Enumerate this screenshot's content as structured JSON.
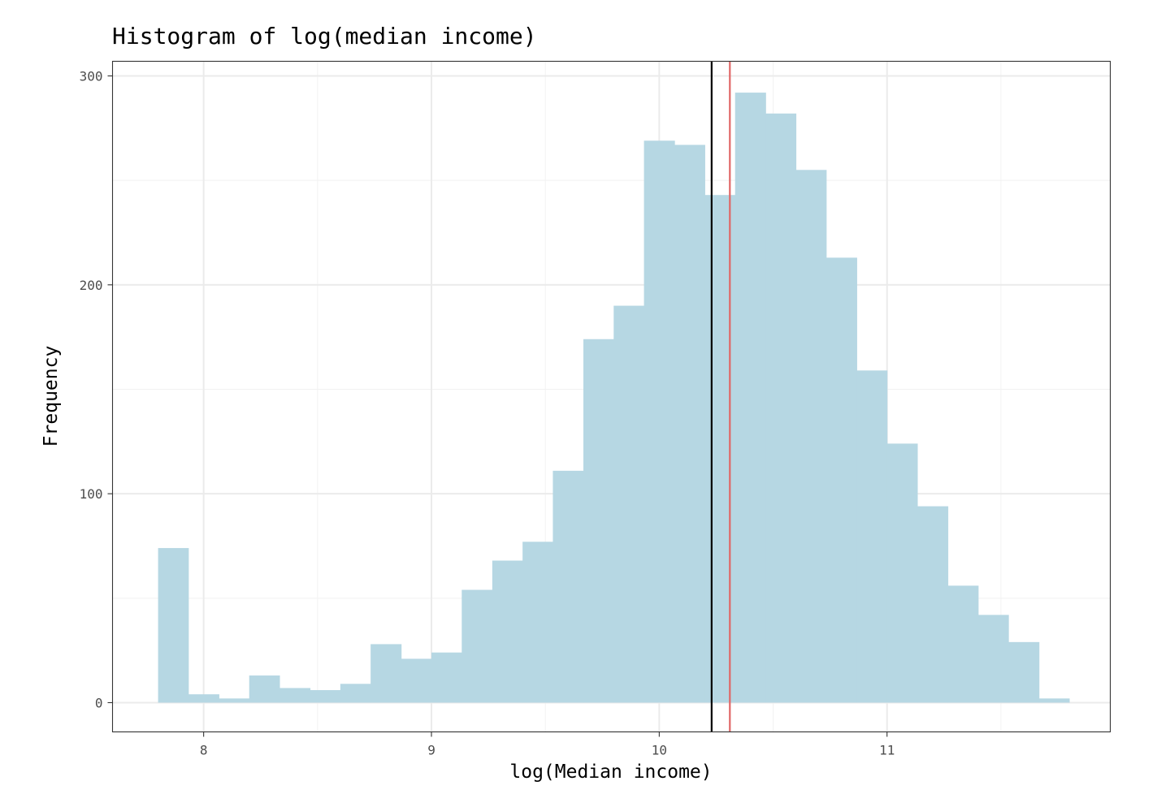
{
  "chart_data": {
    "type": "bar",
    "title": "Histogram of log(median income)",
    "xlabel": "log(Median income)",
    "ylabel": "Frequency",
    "xlim": [
      7.6,
      11.98
    ],
    "ylim": [
      -14,
      307
    ],
    "x_ticks": [
      8,
      9,
      10,
      11
    ],
    "x_minor_ticks": [
      8.5,
      9.5,
      10.5,
      11.5
    ],
    "y_ticks": [
      0,
      100,
      200,
      300
    ],
    "y_minor_ticks": [
      50,
      150,
      250
    ],
    "grid": true,
    "bin_width": 0.1333,
    "bins": [
      {
        "x0": 7.8,
        "x1": 7.933,
        "count": 74
      },
      {
        "x0": 7.933,
        "x1": 8.067,
        "count": 4
      },
      {
        "x0": 8.067,
        "x1": 8.2,
        "count": 2
      },
      {
        "x0": 8.2,
        "x1": 8.333,
        "count": 13
      },
      {
        "x0": 8.333,
        "x1": 8.467,
        "count": 7
      },
      {
        "x0": 8.467,
        "x1": 8.6,
        "count": 6
      },
      {
        "x0": 8.6,
        "x1": 8.733,
        "count": 9
      },
      {
        "x0": 8.733,
        "x1": 8.867,
        "count": 28
      },
      {
        "x0": 8.867,
        "x1": 9.0,
        "count": 21
      },
      {
        "x0": 9.0,
        "x1": 9.133,
        "count": 24
      },
      {
        "x0": 9.133,
        "x1": 9.267,
        "count": 54
      },
      {
        "x0": 9.267,
        "x1": 9.4,
        "count": 68
      },
      {
        "x0": 9.4,
        "x1": 9.533,
        "count": 77
      },
      {
        "x0": 9.533,
        "x1": 9.667,
        "count": 111
      },
      {
        "x0": 9.667,
        "x1": 9.8,
        "count": 174
      },
      {
        "x0": 9.8,
        "x1": 9.933,
        "count": 190
      },
      {
        "x0": 9.933,
        "x1": 10.067,
        "count": 269
      },
      {
        "x0": 10.067,
        "x1": 10.2,
        "count": 267
      },
      {
        "x0": 10.2,
        "x1": 10.333,
        "count": 243
      },
      {
        "x0": 10.333,
        "x1": 10.467,
        "count": 292
      },
      {
        "x0": 10.467,
        "x1": 10.6,
        "count": 282
      },
      {
        "x0": 10.6,
        "x1": 10.733,
        "count": 255
      },
      {
        "x0": 10.733,
        "x1": 10.867,
        "count": 213
      },
      {
        "x0": 10.867,
        "x1": 11.0,
        "count": 159
      },
      {
        "x0": 11.0,
        "x1": 11.133,
        "count": 124
      },
      {
        "x0": 11.133,
        "x1": 11.267,
        "count": 94
      },
      {
        "x0": 11.267,
        "x1": 11.4,
        "count": 56
      },
      {
        "x0": 11.4,
        "x1": 11.533,
        "count": 42
      },
      {
        "x0": 11.533,
        "x1": 11.667,
        "count": 29
      },
      {
        "x0": 11.667,
        "x1": 11.8,
        "count": 2
      }
    ],
    "vlines": [
      {
        "x": 10.23,
        "color": "#000000"
      },
      {
        "x": 10.31,
        "color": "#e06666"
      }
    ],
    "colors": {
      "bar_fill": "#b6d7e3",
      "grid_major": "#ebebeb",
      "grid_minor": "#f2f2f2",
      "panel_border": "#333333"
    }
  }
}
